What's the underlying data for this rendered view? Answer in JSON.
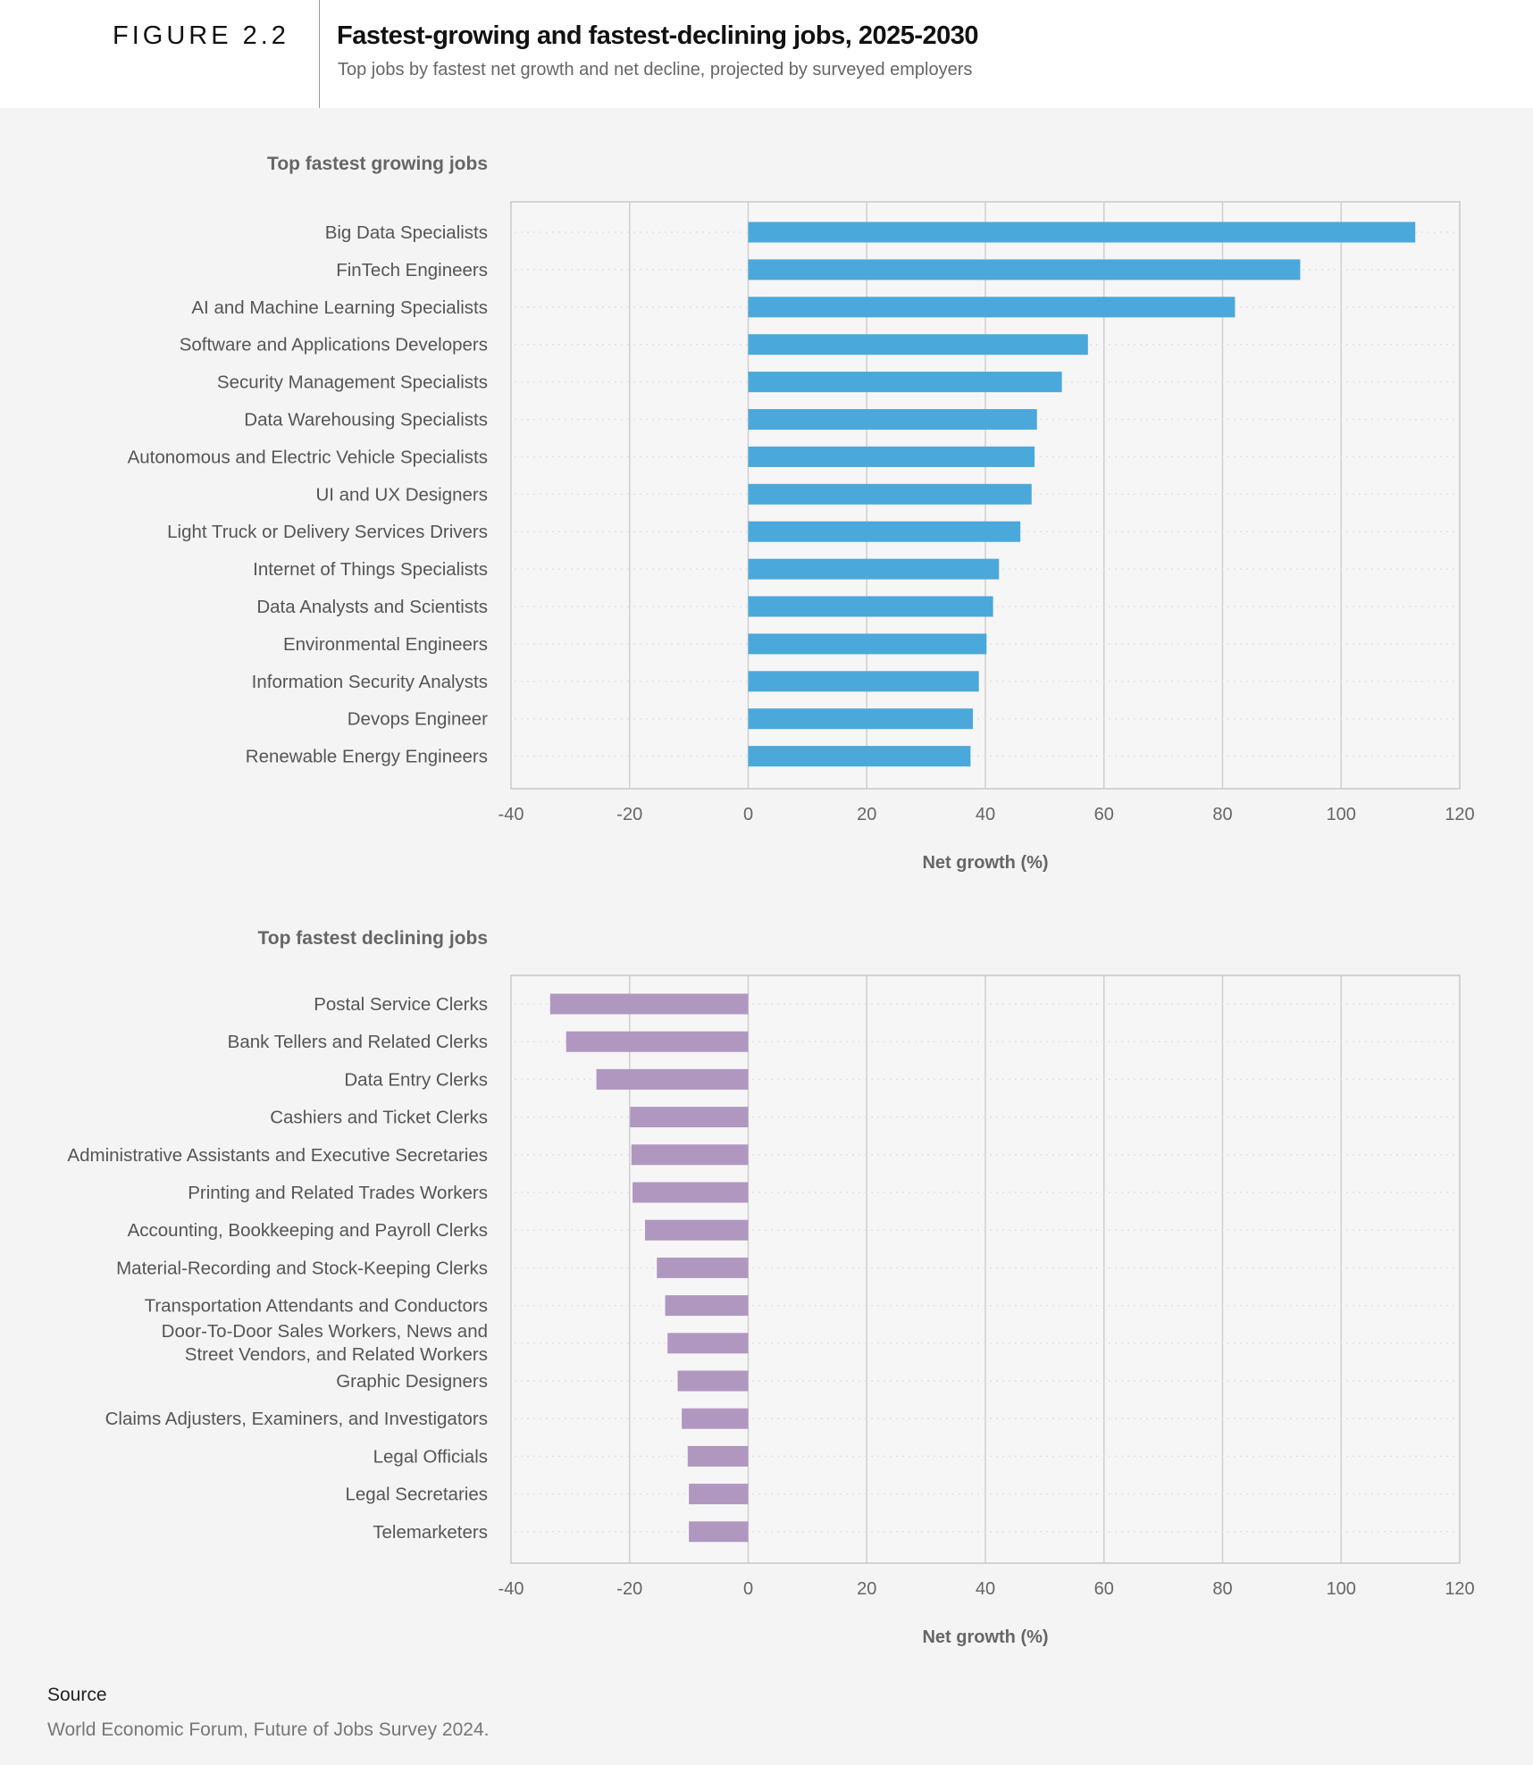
{
  "header": {
    "figure_label": "FIGURE 2.2",
    "title": "Fastest-growing and fastest-declining jobs, 2025-2030",
    "subtitle": "Top jobs by fastest net growth and net decline, projected by surveyed employers"
  },
  "source": {
    "heading": "Source",
    "text": "World Economic Forum, Future of Jobs Survey 2024."
  },
  "chart_data": [
    {
      "type": "bar",
      "orientation": "horizontal",
      "title": "Top fastest growing jobs",
      "xlabel": "Net growth (%)",
      "xlim": [
        -40,
        120
      ],
      "xticks": [
        "-40",
        "-20",
        "0",
        "20",
        "40",
        "60",
        "80",
        "100",
        "120"
      ],
      "grid": "vertical",
      "color": "#4ba8db",
      "categories": [
        "Big Data Specialists",
        "FinTech Engineers",
        "AI and Machine Learning Specialists",
        "Software and Applications Developers",
        "Security Management Specialists",
        "Data Warehousing Specialists",
        "Autonomous and Electric Vehicle Specialists",
        "UI and UX Designers",
        "Light Truck or Delivery Services Drivers",
        "Internet of Things Specialists",
        "Data Analysts and Scientists",
        "Environmental Engineers",
        "Information Security Analysts",
        "Devops Engineer",
        "Renewable Energy Engineers"
      ],
      "values": [
        112.5,
        93.1,
        82.1,
        57.3,
        52.9,
        48.7,
        48.3,
        47.8,
        45.9,
        42.3,
        41.3,
        40.2,
        38.9,
        37.9,
        37.5
      ]
    },
    {
      "type": "bar",
      "orientation": "horizontal",
      "title": "Top fastest declining jobs",
      "xlabel": "Net growth (%)",
      "xlim": [
        -40,
        120
      ],
      "xticks": [
        "-40",
        "-20",
        "0",
        "20",
        "40",
        "60",
        "80",
        "100",
        "120"
      ],
      "grid": "vertical",
      "color": "#b097c0",
      "categories": [
        "Postal Service Clerks",
        "Bank Tellers and Related Clerks",
        "Data Entry Clerks",
        "Cashiers and Ticket Clerks",
        "Administrative Assistants and Executive Secretaries",
        "Printing and Related Trades Workers",
        "Accounting, Bookkeeping and Payroll Clerks",
        "Material-Recording and Stock-Keeping Clerks",
        "Transportation Attendants and Conductors",
        "Door-To-Door Sales Workers, News and Street Vendors, and Related Workers",
        "Graphic Designers",
        "Claims Adjusters, Examiners, and Investigators",
        "Legal Officials",
        "Legal Secretaries",
        "Telemarketers"
      ],
      "values": [
        -33.4,
        -30.7,
        -25.6,
        -19.9,
        -19.7,
        -19.5,
        -17.4,
        -15.4,
        -14.0,
        -13.6,
        -11.9,
        -11.2,
        -10.2,
        -10.0,
        -10.0
      ]
    }
  ]
}
